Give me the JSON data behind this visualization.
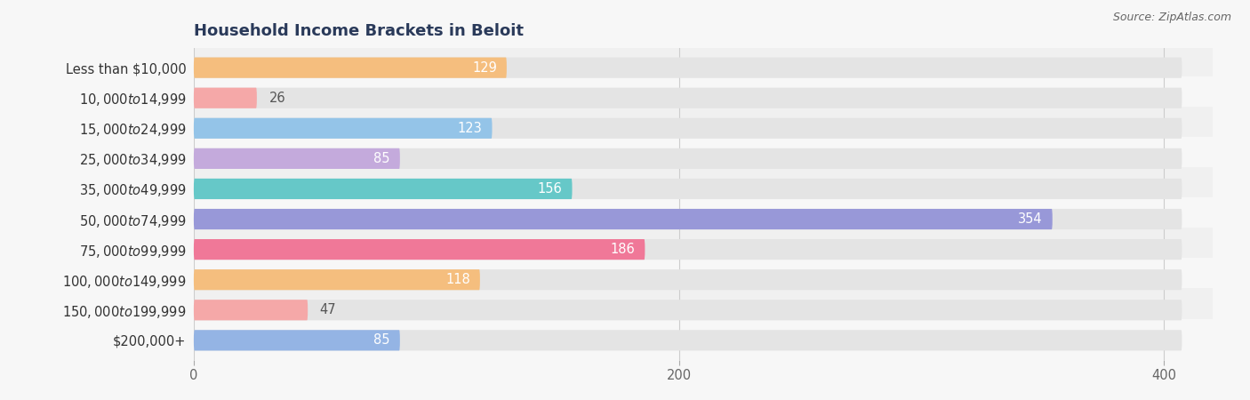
{
  "title": "Household Income Brackets in Beloit",
  "source": "Source: ZipAtlas.com",
  "categories": [
    "Less than $10,000",
    "$10,000 to $14,999",
    "$15,000 to $24,999",
    "$25,000 to $34,999",
    "$35,000 to $49,999",
    "$50,000 to $74,999",
    "$75,000 to $99,999",
    "$100,000 to $149,999",
    "$150,000 to $199,999",
    "$200,000+"
  ],
  "values": [
    129,
    26,
    123,
    85,
    156,
    354,
    186,
    118,
    47,
    85
  ],
  "bar_colors": [
    "#f5be7e",
    "#f5a8a8",
    "#94c4e8",
    "#c4aadc",
    "#66c8c8",
    "#9898d8",
    "#f07898",
    "#f5be7e",
    "#f5a8a8",
    "#94b4e4"
  ],
  "background_color": "#f7f7f7",
  "bar_bg_color": "#e4e4e4",
  "value_inside_color": "#ffffff",
  "value_outside_color": "#555555",
  "inside_threshold": 60,
  "xlim_max": 420,
  "xticks": [
    0,
    200,
    400
  ],
  "title_fontsize": 13,
  "label_fontsize": 10.5,
  "value_fontsize": 10.5,
  "tick_fontsize": 10.5,
  "source_fontsize": 9
}
